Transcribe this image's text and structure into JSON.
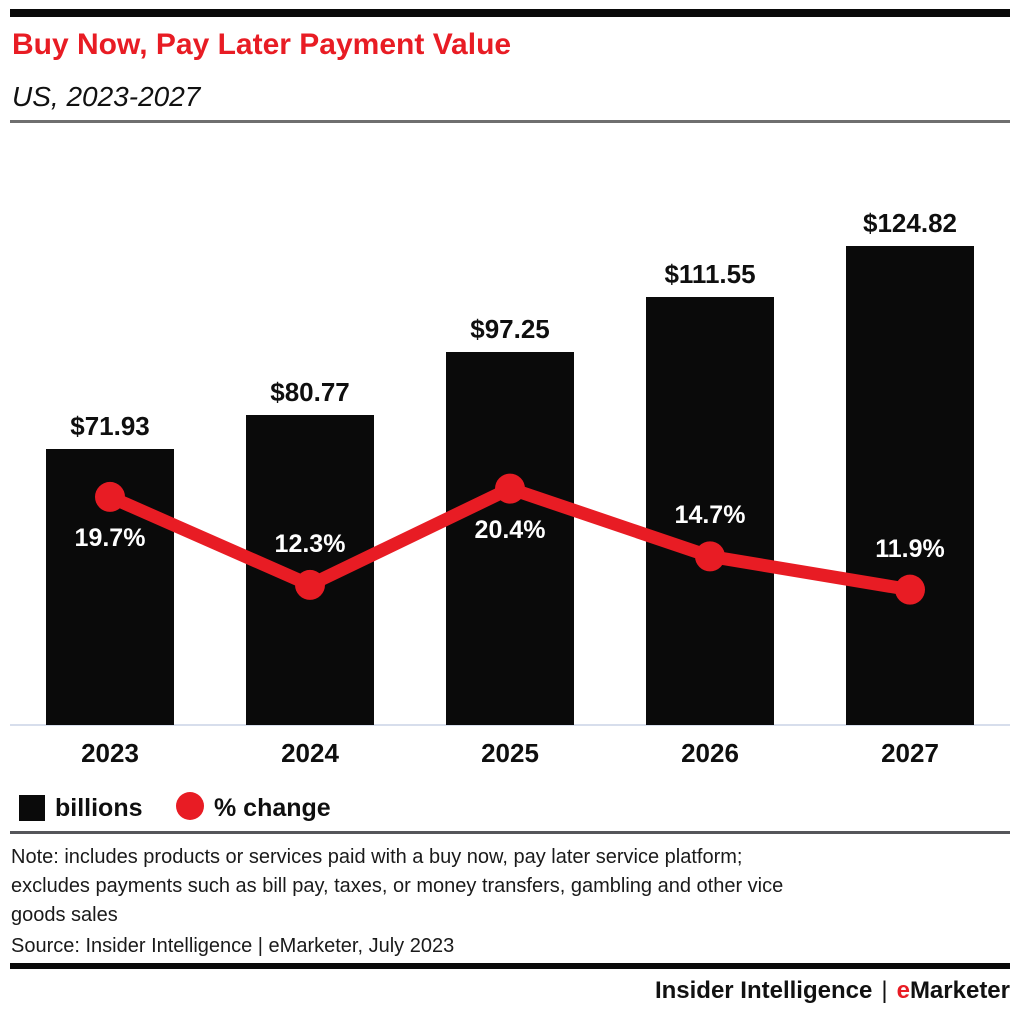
{
  "header": {
    "title": "Buy Now, Pay Later Payment Value",
    "subtitle": "US, 2023-2027"
  },
  "chart_data": {
    "type": "bar",
    "categories": [
      "2023",
      "2024",
      "2025",
      "2026",
      "2027"
    ],
    "series": [
      {
        "name": "billions",
        "type": "bar",
        "values": [
          71.93,
          80.77,
          97.25,
          111.55,
          124.82
        ],
        "labels": [
          "$71.93",
          "$80.77",
          "$97.25",
          "$111.55",
          "$124.82"
        ],
        "color": "#0a0a0a"
      },
      {
        "name": "% change",
        "type": "line",
        "values": [
          19.7,
          12.3,
          20.4,
          14.7,
          11.9
        ],
        "labels": [
          "19.7%",
          "12.3%",
          "20.4%",
          "14.7%",
          "11.9%"
        ],
        "label_placement": [
          "below",
          "above",
          "below",
          "above",
          "above"
        ],
        "color": "#e81c24"
      }
    ],
    "title": "Buy Now, Pay Later Payment Value",
    "subtitle": "US, 2023-2027",
    "xlabel": "",
    "ylabel": "",
    "bar_axis_range": [
      0,
      130
    ],
    "line_axis_range": [
      0,
      25
    ],
    "grid": false,
    "legend_position": "bottom-left",
    "legend": [
      {
        "label": "billions",
        "swatch": "square",
        "color": "#0a0a0a"
      },
      {
        "label": "% change",
        "swatch": "circle",
        "color": "#e81c24"
      }
    ]
  },
  "note_lines": [
    "Note: includes products or services paid with a buy now, pay later service platform;",
    "excludes payments such as bill pay, taxes, or money transfers, gambling and other vice",
    "goods sales"
  ],
  "source": "Source: Insider Intelligence | eMarketer, July 2023",
  "footer": {
    "brand_left": "Insider Intelligence",
    "separator": "|",
    "brand_e": "e",
    "brand_rest": "Marketer"
  },
  "colors": {
    "accent_red": "#e81c24",
    "bar_black": "#0a0a0a",
    "axis_line": "#d7deec",
    "header_rule_gray": "#6f6f6f",
    "legend_rule_gray": "#55565a",
    "pct_label_white": "#ffffff"
  }
}
